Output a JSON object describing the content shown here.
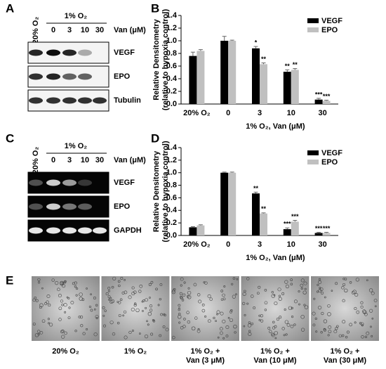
{
  "panels": {
    "A": {
      "letter": "A",
      "control_lane": "20% O₂",
      "group_label": "1% O₂",
      "doses": [
        "0",
        "3",
        "10",
        "30"
      ],
      "dose_label": "Van (μM)",
      "bands": [
        "VEGF",
        "EPO",
        "Tubulin"
      ]
    },
    "C": {
      "letter": "C",
      "control_lane": "20% O₂",
      "group_label": "1% O₂",
      "doses": [
        "0",
        "3",
        "10",
        "30"
      ],
      "dose_label": "Van (μM)",
      "bands": [
        "VEGF",
        "EPO",
        "GAPDH"
      ]
    },
    "E": {
      "letter": "E",
      "images": [
        {
          "label_lines": [
            "20% O₂"
          ]
        },
        {
          "label_lines": [
            "1% O₂"
          ]
        },
        {
          "label_lines": [
            "1% O₂ +",
            "Van  (3 μM)"
          ]
        },
        {
          "label_lines": [
            "1% O₂ +",
            "Van  (10 μM)"
          ]
        },
        {
          "label_lines": [
            "1% O₂ +",
            "Van  (30 μM)"
          ]
        }
      ]
    }
  },
  "chart_data": [
    {
      "type": "bar",
      "letter": "B",
      "ylabel": [
        "Relative Densitometry",
        "(relative to hypoxia control)"
      ],
      "xlabel": "1% O₂, Van (μM)",
      "categories": [
        "20% O₂",
        "0",
        "3",
        "10",
        "30"
      ],
      "series": [
        {
          "name": "VEGF",
          "color": "#000000",
          "values": [
            0.76,
            1.0,
            0.88,
            0.51,
            0.07
          ],
          "errors": [
            0.06,
            0.07,
            0.03,
            0.03,
            0.02
          ],
          "significance": [
            null,
            null,
            "*",
            "**",
            "***"
          ]
        },
        {
          "name": "EPO",
          "color": "#c0c0c0",
          "values": [
            0.84,
            1.0,
            0.63,
            0.54,
            0.05
          ],
          "errors": [
            0.02,
            0.01,
            0.02,
            0.02,
            0.01
          ],
          "significance": [
            null,
            null,
            "**",
            "**",
            "***"
          ]
        }
      ],
      "ylim": [
        0,
        1.4
      ],
      "yticks": [
        {
          "value": 0,
          "label": "0.0"
        },
        {
          "value": 0.2,
          "label": "0.2"
        },
        {
          "value": 0.4,
          "label": "0.4"
        },
        {
          "value": 0.6,
          "label": "0.6"
        },
        {
          "value": 0.8,
          "label": "0.8"
        },
        {
          "value": 1,
          "label": "1.0"
        },
        {
          "value": 1.2,
          "label": "1.2"
        },
        {
          "value": 1.4,
          "label": "1.4"
        }
      ],
      "legend": "upper right"
    },
    {
      "type": "bar",
      "letter": "D",
      "ylabel": [
        "Relative Densitometry",
        "(relative to hypoxia control)"
      ],
      "xlabel": "1% O₂, Van (μM)",
      "categories": [
        "20% O₂",
        "0",
        "3",
        "10",
        "30"
      ],
      "series": [
        {
          "name": "VEGF",
          "color": "#000000",
          "values": [
            0.13,
            1.0,
            0.67,
            0.1,
            0.04
          ],
          "errors": [
            0.01,
            0.01,
            0.02,
            0.02,
            0.01
          ],
          "significance": [
            null,
            null,
            "**",
            "***",
            "***"
          ]
        },
        {
          "name": "EPO",
          "color": "#c0c0c0",
          "values": [
            0.16,
            1.0,
            0.35,
            0.22,
            0.04
          ],
          "errors": [
            0.01,
            0.01,
            0.01,
            0.02,
            0.01
          ],
          "significance": [
            null,
            null,
            "**",
            "***",
            "***"
          ]
        }
      ],
      "ylim": [
        0,
        1.4
      ],
      "yticks": [
        {
          "value": 0,
          "label": "0.0"
        },
        {
          "value": 0.2,
          "label": "0.2"
        },
        {
          "value": 0.4,
          "label": "0.4"
        },
        {
          "value": 0.6,
          "label": "0.6"
        },
        {
          "value": 0.8,
          "label": "0.8"
        },
        {
          "value": 1,
          "label": "1.0"
        },
        {
          "value": 1.2,
          "label": "1.2"
        },
        {
          "value": 1.4,
          "label": "1.4"
        }
      ],
      "legend": "upper right"
    }
  ]
}
